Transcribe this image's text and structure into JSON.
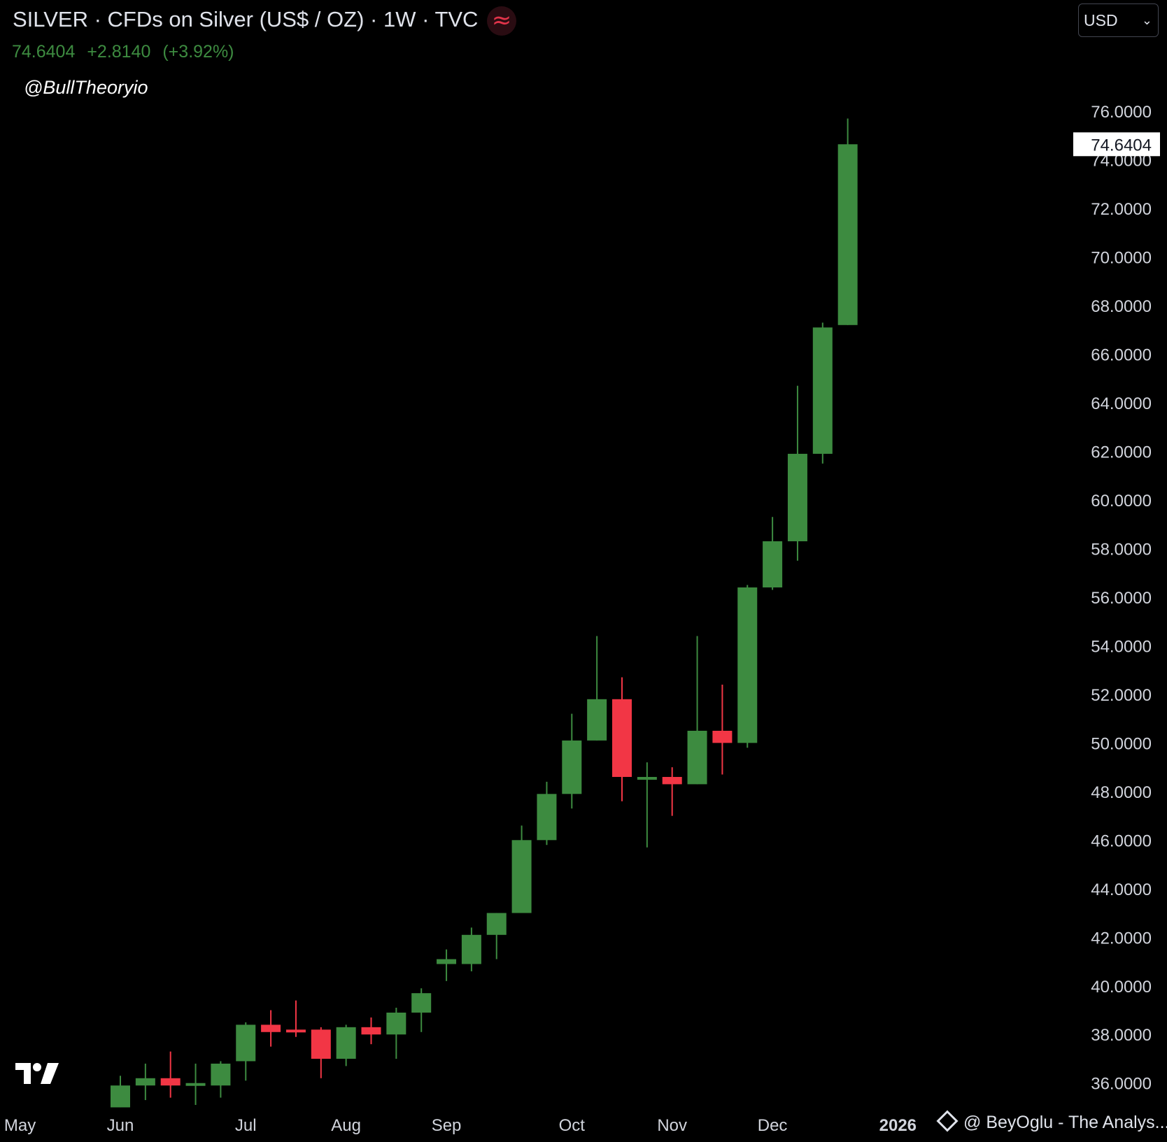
{
  "header": {
    "title": "SILVER · CFDs on Silver (US$ / OZ) · 1W · TVC",
    "source_icon": "tilde-wave-icon",
    "last_price": "74.6404",
    "change": "+2.8140",
    "change_pct": "(+3.92%)"
  },
  "watermark": "@BullTheoryio",
  "currency_select": {
    "value": "USD",
    "icon": "chevron-down-icon"
  },
  "footer": {
    "credit": "@ BeyOglu - The Analys...",
    "logo_icon": "tradingview-logo-icon"
  },
  "colors": {
    "background": "#000000",
    "up": "#3d8b40",
    "down": "#f23645",
    "text": "#d1d4dc",
    "price_label_bg": "#ffffff",
    "price_label_text": "#131722"
  },
  "chart_data": {
    "type": "candlestick",
    "symbol": "SILVER",
    "interval": "1W",
    "ylim": [
      35.1,
      77.7
    ],
    "y_ticks": [
      "36.0000",
      "38.0000",
      "40.0000",
      "42.0000",
      "44.0000",
      "46.0000",
      "48.0000",
      "50.0000",
      "52.0000",
      "54.0000",
      "56.0000",
      "58.0000",
      "60.0000",
      "62.0000",
      "64.0000",
      "66.0000",
      "68.0000",
      "70.0000",
      "72.0000",
      "74.0000",
      "76.0000"
    ],
    "x_labels": [
      {
        "label": "May",
        "week": -4
      },
      {
        "label": "Jun",
        "week": 0
      },
      {
        "label": "Jul",
        "week": 5
      },
      {
        "label": "Aug",
        "week": 9
      },
      {
        "label": "Sep",
        "week": 13
      },
      {
        "label": "Oct",
        "week": 18
      },
      {
        "label": "Nov",
        "week": 22
      },
      {
        "label": "Dec",
        "week": 26
      },
      {
        "label": "2026",
        "week": 31,
        "bold": true
      }
    ],
    "last_price_label": "74.6404",
    "candles": [
      {
        "week": 0,
        "open": 35.0,
        "high": 36.3,
        "low": 35.0,
        "close": 35.9
      },
      {
        "week": 1,
        "open": 35.9,
        "high": 36.8,
        "low": 35.3,
        "close": 36.2
      },
      {
        "week": 2,
        "open": 36.2,
        "high": 37.3,
        "low": 35.4,
        "close": 35.9
      },
      {
        "week": 3,
        "open": 36.0,
        "high": 36.8,
        "low": 35.1,
        "close": 36.0
      },
      {
        "week": 4,
        "open": 35.9,
        "high": 36.9,
        "low": 35.4,
        "close": 36.8
      },
      {
        "week": 5,
        "open": 36.9,
        "high": 38.5,
        "low": 36.1,
        "close": 38.4
      },
      {
        "week": 6,
        "open": 38.4,
        "high": 39.0,
        "low": 37.5,
        "close": 38.1
      },
      {
        "week": 7,
        "open": 38.2,
        "high": 39.4,
        "low": 37.9,
        "close": 38.1
      },
      {
        "week": 8,
        "open": 38.2,
        "high": 38.3,
        "low": 36.2,
        "close": 37.0
      },
      {
        "week": 9,
        "open": 37.0,
        "high": 38.4,
        "low": 36.7,
        "close": 38.3
      },
      {
        "week": 10,
        "open": 38.3,
        "high": 38.7,
        "low": 37.6,
        "close": 38.0
      },
      {
        "week": 11,
        "open": 38.0,
        "high": 39.1,
        "low": 37.0,
        "close": 38.9
      },
      {
        "week": 12,
        "open": 38.9,
        "high": 39.9,
        "low": 38.1,
        "close": 39.7
      },
      {
        "week": 13,
        "open": 40.9,
        "high": 41.5,
        "low": 40.2,
        "close": 41.1
      },
      {
        "week": 14,
        "open": 40.9,
        "high": 42.4,
        "low": 40.6,
        "close": 42.1
      },
      {
        "week": 15,
        "open": 42.1,
        "high": 43.0,
        "low": 41.1,
        "close": 43.0
      },
      {
        "week": 16,
        "open": 43.0,
        "high": 46.6,
        "low": 43.0,
        "close": 46.0
      },
      {
        "week": 17,
        "open": 46.0,
        "high": 48.4,
        "low": 45.8,
        "close": 47.9
      },
      {
        "week": 18,
        "open": 47.9,
        "high": 51.2,
        "low": 47.3,
        "close": 50.1
      },
      {
        "week": 19,
        "open": 50.1,
        "high": 54.4,
        "low": 50.1,
        "close": 51.8
      },
      {
        "week": 20,
        "open": 51.8,
        "high": 52.7,
        "low": 47.6,
        "close": 48.6
      },
      {
        "week": 21,
        "open": 48.5,
        "high": 49.2,
        "low": 45.7,
        "close": 48.6
      },
      {
        "week": 22,
        "open": 48.6,
        "high": 49.0,
        "low": 47.0,
        "close": 48.3
      },
      {
        "week": 23,
        "open": 48.3,
        "high": 54.4,
        "low": 48.3,
        "close": 50.5
      },
      {
        "week": 24,
        "open": 50.5,
        "high": 52.4,
        "low": 48.7,
        "close": 50.0
      },
      {
        "week": 25,
        "open": 50.0,
        "high": 56.5,
        "low": 49.8,
        "close": 56.4
      },
      {
        "week": 26,
        "open": 56.4,
        "high": 59.3,
        "low": 56.3,
        "close": 58.3
      },
      {
        "week": 27,
        "open": 58.3,
        "high": 64.7,
        "low": 57.5,
        "close": 61.9
      },
      {
        "week": 28,
        "open": 61.9,
        "high": 67.3,
        "low": 61.5,
        "close": 67.1
      },
      {
        "week": 29,
        "open": 67.2,
        "high": 75.7,
        "low": 67.2,
        "close": 74.6404
      }
    ]
  }
}
